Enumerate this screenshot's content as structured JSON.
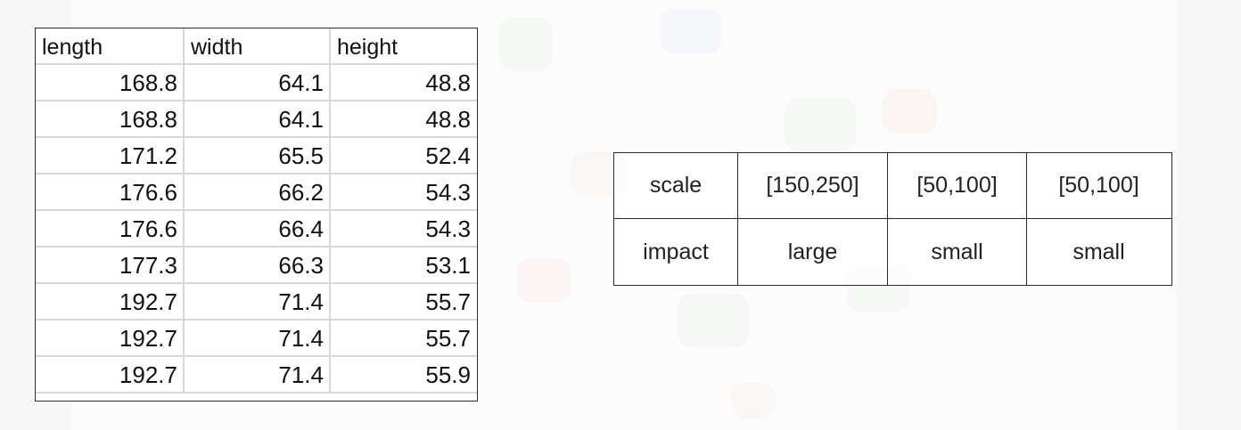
{
  "data_table": {
    "headers": [
      "length",
      "width",
      "height"
    ],
    "rows": [
      [
        "168.8",
        "64.1",
        "48.8"
      ],
      [
        "168.8",
        "64.1",
        "48.8"
      ],
      [
        "171.2",
        "65.5",
        "52.4"
      ],
      [
        "176.6",
        "66.2",
        "54.3"
      ],
      [
        "176.6",
        "66.4",
        "54.3"
      ],
      [
        "177.3",
        "66.3",
        "53.1"
      ],
      [
        "192.7",
        "71.4",
        "55.7"
      ],
      [
        "192.7",
        "71.4",
        "55.7"
      ],
      [
        "192.7",
        "71.4",
        "55.9"
      ]
    ]
  },
  "summary_table": {
    "rows": [
      [
        "scale",
        "[150,250]",
        "[50,100]",
        "[50,100]"
      ],
      [
        "impact",
        "large",
        "small",
        "small"
      ]
    ]
  }
}
